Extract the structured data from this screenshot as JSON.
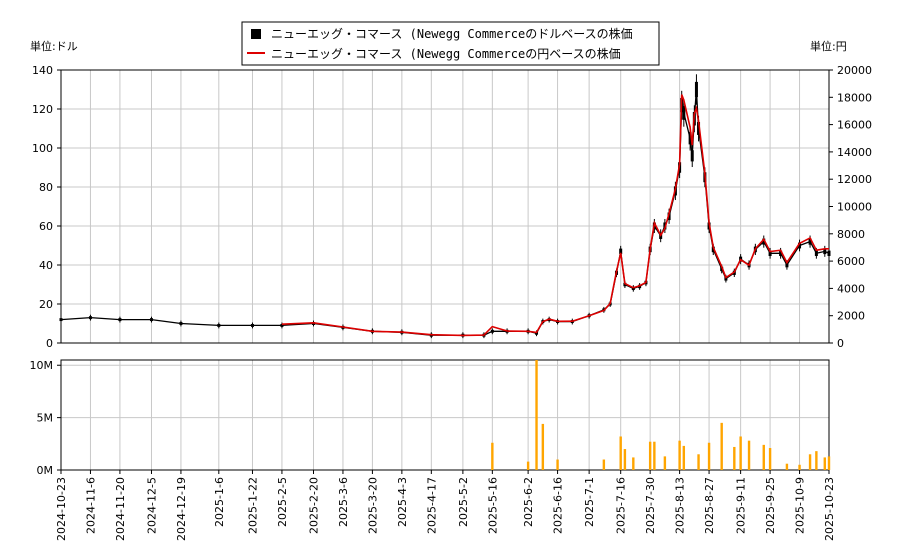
{
  "chart_data": {
    "type": "line",
    "legend": {
      "placement": "top-center",
      "entries": [
        {
          "label": "ニューエッグ・コマース (Newegg Commerceのドルベースの株価",
          "color": "#000000",
          "symbol": "square"
        },
        {
          "label": "ニューエッグ・コマース (Newegg Commerceの円ベースの株価",
          "color": "#dd0000",
          "symbol": "line"
        }
      ]
    },
    "ylabel_left": "単位:ドル",
    "ylabel_right": "単位:円",
    "ylim_left": [
      0,
      140
    ],
    "ylim_right": [
      0,
      20000
    ],
    "yticks_left": [
      "0",
      "20",
      "40",
      "60",
      "80",
      "100",
      "120",
      "140"
    ],
    "yticks_right": [
      "0",
      "2000",
      "4000",
      "6000",
      "8000",
      "10000",
      "12000",
      "14000",
      "16000",
      "18000",
      "20000"
    ],
    "volume_ylim": [
      0,
      10500000
    ],
    "volume_yticks": [
      "0M",
      "5M",
      "10M"
    ],
    "xlim": [
      "2024-10-23",
      "2025-10-23"
    ],
    "xticks": [
      "2024-10-23",
      "2024-11-6",
      "2024-11-20",
      "2024-12-5",
      "2024-12-19",
      "2025-1-6",
      "2025-1-22",
      "2025-2-5",
      "2025-2-20",
      "2025-3-6",
      "2025-3-20",
      "2025-4-3",
      "2025-4-17",
      "2025-5-2",
      "2025-5-16",
      "2025-6-2",
      "2025-6-16",
      "2025-7-1",
      "2025-7-16",
      "2025-7-30",
      "2025-8-13",
      "2025-8-27",
      "2025-9-11",
      "2025-9-25",
      "2025-10-9",
      "2025-10-23"
    ],
    "grid": true,
    "colors": {
      "usd_candle": "#000000",
      "jpy_line": "#dd0000",
      "volume": "#ffa500",
      "grid": "#c8c8c8"
    },
    "usd_price": {
      "x": [
        "2024-10-23",
        "2024-11-6",
        "2024-11-20",
        "2024-12-5",
        "2024-12-19",
        "2025-1-6",
        "2025-1-22",
        "2025-2-5",
        "2025-2-20",
        "2025-3-6",
        "2025-3-20",
        "2025-4-3",
        "2025-4-17",
        "2025-5-2",
        "2025-5-12",
        "2025-5-16",
        "2025-5-23",
        "2025-6-2",
        "2025-6-6",
        "2025-6-9",
        "2025-6-12",
        "2025-6-16",
        "2025-6-23",
        "2025-7-1",
        "2025-7-8",
        "2025-7-11",
        "2025-7-14",
        "2025-7-16",
        "2025-7-18",
        "2025-7-22",
        "2025-7-25",
        "2025-7-28",
        "2025-7-30",
        "2025-8-1",
        "2025-8-4",
        "2025-8-6",
        "2025-8-8",
        "2025-8-11",
        "2025-8-13",
        "2025-8-14",
        "2025-8-15",
        "2025-8-18",
        "2025-8-19",
        "2025-8-20",
        "2025-8-21",
        "2025-8-22",
        "2025-8-25",
        "2025-8-27",
        "2025-8-29",
        "2025-9-2",
        "2025-9-4",
        "2025-9-8",
        "2025-9-11",
        "2025-9-15",
        "2025-9-18",
        "2025-9-22",
        "2025-9-25",
        "2025-9-30",
        "2025-10-3",
        "2025-10-9",
        "2025-10-14",
        "2025-10-17",
        "2025-10-21",
        "2025-10-23"
      ],
      "close": [
        12,
        13,
        12,
        12,
        10,
        9,
        9,
        9,
        10,
        8,
        6,
        5.5,
        4,
        4,
        4,
        6,
        6,
        6,
        5,
        11,
        12,
        11,
        11,
        14,
        17,
        20,
        36,
        47,
        30,
        28,
        29,
        31,
        48,
        60,
        55,
        60,
        65,
        78,
        90,
        122,
        118,
        105,
        96,
        115,
        130,
        110,
        85,
        60,
        48,
        38,
        33,
        36,
        43,
        40,
        48,
        52,
        46,
        46,
        40,
        50,
        52,
        46,
        47,
        46
      ]
    },
    "jpy_price": {
      "x": [
        "2025-2-5",
        "2025-2-20",
        "2025-3-6",
        "2025-3-20",
        "2025-4-3",
        "2025-4-17",
        "2025-5-2",
        "2025-5-12",
        "2025-5-16",
        "2025-5-23",
        "2025-6-2",
        "2025-6-6",
        "2025-6-9",
        "2025-6-12",
        "2025-6-16",
        "2025-6-23",
        "2025-7-1",
        "2025-7-8",
        "2025-7-11",
        "2025-7-14",
        "2025-7-16",
        "2025-7-18",
        "2025-7-22",
        "2025-7-25",
        "2025-7-28",
        "2025-7-30",
        "2025-8-1",
        "2025-8-4",
        "2025-8-6",
        "2025-8-8",
        "2025-8-11",
        "2025-8-13",
        "2025-8-14",
        "2025-8-15",
        "2025-8-18",
        "2025-8-19",
        "2025-8-20",
        "2025-8-21",
        "2025-8-22",
        "2025-8-25",
        "2025-8-27",
        "2025-8-29",
        "2025-9-2",
        "2025-9-4",
        "2025-9-8",
        "2025-9-11",
        "2025-9-15",
        "2025-9-18",
        "2025-9-22",
        "2025-9-25",
        "2025-9-30",
        "2025-10-3",
        "2025-10-9",
        "2025-10-14",
        "2025-10-17",
        "2025-10-21",
        "2025-10-23"
      ],
      "close": [
        1380,
        1480,
        1170,
        860,
        800,
        610,
        560,
        580,
        1200,
        880,
        860,
        780,
        1570,
        1750,
        1590,
        1600,
        2000,
        2380,
        2900,
        5250,
        6600,
        4350,
        4050,
        4200,
        4430,
        6900,
        8800,
        7900,
        8400,
        9500,
        11300,
        13100,
        18200,
        17800,
        15800,
        14500,
        16800,
        17200,
        16300,
        12400,
        8800,
        7000,
        5600,
        4800,
        5200,
        6100,
        5700,
        6900,
        7600,
        6700,
        6800,
        5900,
        7300,
        7700,
        6800,
        6900,
        6900
      ]
    },
    "volume": {
      "x": [
        "2025-5-16",
        "2025-6-2",
        "2025-6-6",
        "2025-6-9",
        "2025-6-16",
        "2025-7-8",
        "2025-7-16",
        "2025-7-18",
        "2025-7-22",
        "2025-7-30",
        "2025-8-1",
        "2025-8-6",
        "2025-8-13",
        "2025-8-15",
        "2025-8-22",
        "2025-8-27",
        "2025-9-2",
        "2025-9-8",
        "2025-9-11",
        "2025-9-15",
        "2025-9-22",
        "2025-9-25",
        "2025-10-3",
        "2025-10-9",
        "2025-10-14",
        "2025-10-17",
        "2025-10-21",
        "2025-10-23"
      ],
      "values": [
        2600000,
        800000,
        10500000,
        4400000,
        1000000,
        1000000,
        3200000,
        2000000,
        1200000,
        2700000,
        2700000,
        1300000,
        2800000,
        2300000,
        1500000,
        2600000,
        4500000,
        2200000,
        3200000,
        2800000,
        2400000,
        2100000,
        600000,
        500000,
        1500000,
        1800000,
        1200000,
        1300000
      ]
    }
  }
}
